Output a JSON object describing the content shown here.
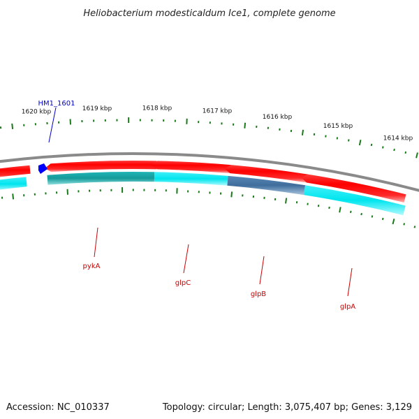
{
  "title": "Heliobacterium modesticaldum Ice1, complete genome",
  "footer": {
    "accession": "Accession: NC_010337",
    "summary": "Topology: circular; Length: 3,075,407 bp; Genes: 3,129"
  },
  "colors": {
    "backbone": "#8a8a8a",
    "cds": "#ff0000",
    "cds_highlight": "#ff9a9a",
    "feature_cyan": "#00e5ee",
    "feature_teal": "#1aa9a9",
    "feature_steel": "#4a7aa8",
    "tick": "#1a7a1a",
    "gene_label": "#cc0000",
    "tag_label": "#0000cc",
    "marker": "#0000ff"
  },
  "scale_labels": [
    "1620 kbp",
    "1619 kbp",
    "1618 kbp",
    "1617 kbp",
    "1616 kbp",
    "1615 kbp",
    "1614 kbp"
  ],
  "genes": [
    {
      "name": "pykA",
      "color_role": "feature_teal"
    },
    {
      "name": "glpC",
      "color_role": "feature_cyan"
    },
    {
      "name": "glpB",
      "color_role": "feature_steel"
    },
    {
      "name": "glpA",
      "color_role": "feature_cyan"
    }
  ],
  "tagged_locus": "HM1_1601"
}
